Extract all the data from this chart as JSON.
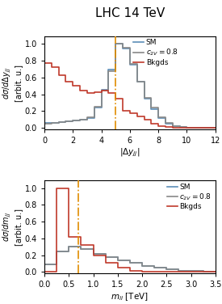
{
  "title": "LHC 14 TeV",
  "title_fontsize": 11,
  "plot1": {
    "xlabel": "$|\\Delta y_{jj}|$",
    "ylabel": "$d\\sigma/d\\Delta y_{jj}$\\n[arbit. u.]",
    "xlim": [
      0,
      12
    ],
    "ylim": [
      -0.02,
      1.09
    ],
    "xticks": [
      0,
      2,
      4,
      6,
      8,
      10,
      12
    ],
    "yticks": [
      0.0,
      0.2,
      0.4,
      0.6,
      0.8,
      1.0
    ],
    "vline": 5.0,
    "bin_edges": [
      0.0,
      0.5,
      1.0,
      1.5,
      2.0,
      2.5,
      3.0,
      3.5,
      4.0,
      4.5,
      5.0,
      5.5,
      6.0,
      6.5,
      7.0,
      7.5,
      8.0,
      8.5,
      9.0,
      9.5,
      10.0,
      10.5,
      11.0,
      11.5,
      12.0
    ],
    "SM": [
      0.06,
      0.06,
      0.07,
      0.08,
      0.09,
      0.1,
      0.12,
      0.24,
      0.45,
      0.7,
      1.0,
      0.95,
      0.75,
      0.55,
      0.35,
      0.22,
      0.12,
      0.05,
      0.02,
      0.01,
      0.0,
      0.0,
      0.0,
      0.0
    ],
    "c2V": [
      0.05,
      0.06,
      0.07,
      0.08,
      0.09,
      0.1,
      0.13,
      0.25,
      0.44,
      0.68,
      1.0,
      0.96,
      0.76,
      0.55,
      0.36,
      0.24,
      0.13,
      0.06,
      0.02,
      0.01,
      0.0,
      0.0,
      0.0,
      0.0
    ],
    "Bkgds": [
      0.77,
      0.72,
      0.63,
      0.55,
      0.5,
      0.44,
      0.42,
      0.43,
      0.44,
      0.42,
      0.35,
      0.2,
      0.17,
      0.14,
      0.1,
      0.05,
      0.02,
      0.01,
      0.0,
      0.0,
      0.0,
      0.0,
      0.0,
      0.0
    ]
  },
  "plot2": {
    "xlabel": "$m_{ii}$ [TeV]",
    "ylabel": "$d\\sigma/dm_{jj}$\\n[arbit. u.]",
    "xlim": [
      0.0,
      3.5
    ],
    "ylim": [
      -0.02,
      1.09
    ],
    "xticks": [
      0.0,
      0.5,
      1.0,
      1.5,
      2.0,
      2.5,
      3.0,
      3.5
    ],
    "yticks": [
      0.0,
      0.2,
      0.4,
      0.6,
      0.8,
      1.0
    ],
    "vline": 0.7,
    "bin_edges": [
      0.0,
      0.25,
      0.5,
      0.75,
      1.0,
      1.25,
      1.5,
      1.75,
      2.0,
      2.25,
      2.5,
      2.75,
      3.0,
      3.25,
      3.5
    ],
    "SM": [
      0.09,
      0.24,
      0.3,
      0.27,
      0.22,
      0.18,
      0.14,
      0.11,
      0.07,
      0.05,
      0.03,
      0.015,
      0.008,
      0.003
    ],
    "c2V": [
      0.09,
      0.24,
      0.3,
      0.27,
      0.22,
      0.18,
      0.14,
      0.11,
      0.07,
      0.05,
      0.03,
      0.015,
      0.008,
      0.003
    ],
    "Bkgds": [
      0.0,
      1.0,
      0.42,
      0.32,
      0.2,
      0.11,
      0.05,
      0.015,
      0.005,
      0.0,
      0.0,
      0.0,
      0.0,
      0.0
    ]
  },
  "colors": {
    "SM": "#5b8db8",
    "c2V": "#888888",
    "Bkgds": "#c0392b",
    "vline": "#e08c00"
  },
  "linewidth": 1.2,
  "font_size": 7.5
}
